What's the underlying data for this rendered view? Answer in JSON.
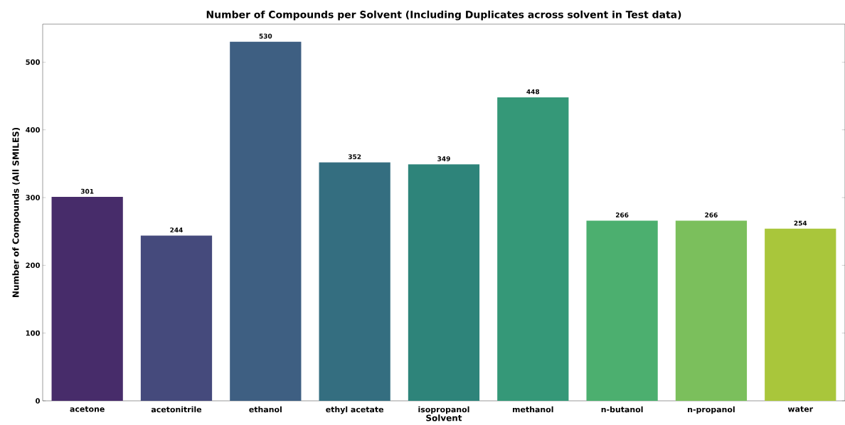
{
  "chart_data": {
    "type": "bar",
    "title": "Number of Compounds per Solvent (Including Duplicates across solvent in Test data)",
    "xlabel": "Solvent",
    "ylabel": "Number of Compounds (All SMILES)",
    "categories": [
      "acetone",
      "acetonitrile",
      "ethanol",
      "ethyl acetate",
      "isopropanol",
      "methanol",
      "n-butanol",
      "n-propanol",
      "water"
    ],
    "values": [
      301,
      244,
      530,
      352,
      349,
      448,
      266,
      266,
      254
    ],
    "colors": [
      "#472c6a",
      "#454a7c",
      "#3e5f82",
      "#346e80",
      "#2e847a",
      "#359878",
      "#4caf6f",
      "#7bbf5c",
      "#a9c63b"
    ],
    "ylim": [
      0,
      556
    ],
    "yticks": [
      0,
      100,
      200,
      300,
      400,
      500
    ],
    "data_labels": true
  }
}
